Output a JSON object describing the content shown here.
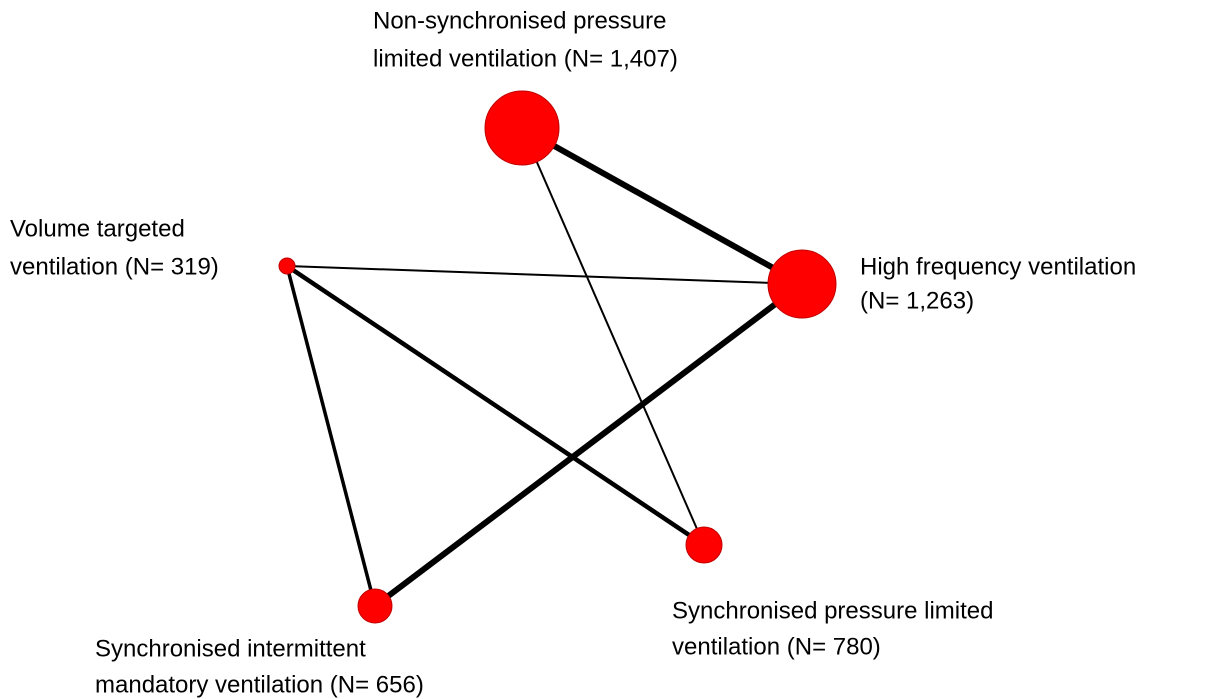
{
  "nodes": [
    {
      "label": [
        "Non-synchronised pressure",
        "limited ventilation (N= 1,407)"
      ]
    },
    {
      "label": [
        "High frequency ventilation",
        "(N= 1,263)"
      ]
    },
    {
      "label": [
        "Volume targeted",
        "ventilation (N= 319)"
      ]
    },
    {
      "label": [
        "Synchronised pressure limited",
        "ventilation (N= 780)"
      ]
    },
    {
      "label": [
        "Synchronised intermittent",
        "mandatory ventilation (N= 656)"
      ]
    }
  ]
}
